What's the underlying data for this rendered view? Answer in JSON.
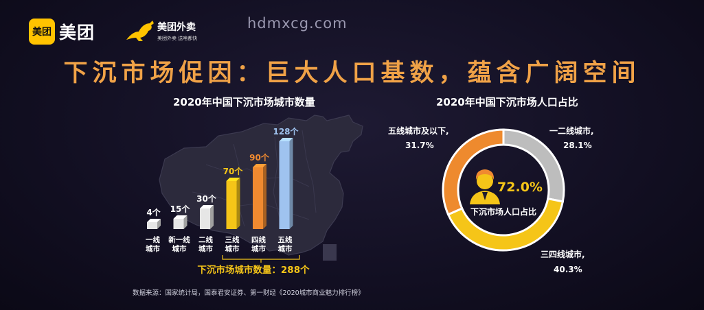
{
  "logos": {
    "meituan_badge": "美团",
    "meituan_word": "美团",
    "waimai_name": "美团外卖",
    "waimai_slogan": "美团外卖 送啥都快"
  },
  "watermark": "hdmxcg.com",
  "title": "下沉市场促因：巨大人口基数，蕴含广阔空间",
  "source": "数据来源：国家统计局，国泰君安证券、第一财经《2020城市商业魅力排行榜》",
  "colors": {
    "title": "#f0a247",
    "bar_tier1": "#e6e6e6",
    "bar_tier3": "#f5c518",
    "bar_tier4": "#f08a30",
    "bar_tier5": "#9fc3ef",
    "donut_gray": "#bdbdbd",
    "donut_yellow": "#f5c518",
    "donut_orange": "#ee8a2e",
    "total_text": "#f5c518"
  },
  "chart_data": [
    {
      "type": "bar",
      "title": "2020年中国下沉市场城市数量",
      "categories": [
        [
          "一线",
          "城市"
        ],
        [
          "新一线",
          "城市"
        ],
        [
          "二线",
          "城市"
        ],
        [
          "三线",
          "城市"
        ],
        [
          "四线",
          "城市"
        ],
        [
          "五线",
          "城市"
        ]
      ],
      "values": [
        4,
        15,
        30,
        70,
        90,
        128
      ],
      "value_labels": [
        "4个",
        "15个",
        "30个",
        "70个",
        "90个",
        "128个"
      ],
      "ylim": [
        0,
        128
      ],
      "grid": false,
      "annotation": "下沉市场城市数量：288个"
    },
    {
      "type": "pie",
      "title": "2020年中国下沉市场人口占比",
      "center_value": "72.0%",
      "center_label": "下沉市场人口占比",
      "slices": [
        {
          "label": "一二线城市,",
          "value": 28.1,
          "value_label": "28.1%",
          "color": "#bdbdbd"
        },
        {
          "label": "三四线城市,",
          "value": 40.3,
          "value_label": "40.3%",
          "color": "#f5c518"
        },
        {
          "label": "五线城市及以下,",
          "value": 31.7,
          "value_label": "31.7%",
          "color": "#ee8a2e"
        }
      ]
    }
  ]
}
